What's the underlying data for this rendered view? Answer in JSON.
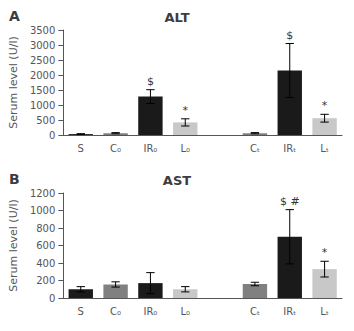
{
  "chart_data": [
    {
      "type": "bar",
      "panel_label": "A",
      "title": "ALT",
      "ylabel": "Serum level (U/l)",
      "categories": [
        "S",
        "C₀",
        "IR₀",
        "L₀",
        null,
        "Cₜ",
        "IRₜ",
        "Lₜ"
      ],
      "values": [
        30,
        60,
        1280,
        420,
        null,
        60,
        2150,
        560
      ],
      "errors": [
        15,
        20,
        230,
        120,
        null,
        20,
        900,
        130
      ],
      "colors": [
        "#1a1a1a",
        "#808080",
        "#1a1a1a",
        "#c8c8c8",
        null,
        "#808080",
        "#1a1a1a",
        "#c8c8c8"
      ],
      "annotations": [
        {
          "bar_index": 2,
          "text": "$"
        },
        {
          "bar_index": 3,
          "text": "*"
        },
        {
          "bar_index": 6,
          "text": "$"
        },
        {
          "bar_index": 7,
          "text": "*"
        }
      ],
      "ylim": [
        0,
        3500
      ],
      "yticks": [
        0,
        500,
        1000,
        1500,
        2000,
        2500,
        3000,
        3500
      ],
      "grid": false
    },
    {
      "type": "bar",
      "panel_label": "B",
      "title": "AST",
      "ylabel": "Serum level (U/l)",
      "categories": [
        "S",
        "C₀",
        "IR₀",
        "L₀",
        null,
        "Cₜ",
        "IRₜ",
        "Lₜ"
      ],
      "values": [
        100,
        155,
        170,
        100,
        null,
        160,
        700,
        330
      ],
      "errors": [
        30,
        30,
        120,
        30,
        null,
        20,
        310,
        90
      ],
      "colors": [
        "#1a1a1a",
        "#808080",
        "#1a1a1a",
        "#c8c8c8",
        null,
        "#808080",
        "#1a1a1a",
        "#c8c8c8"
      ],
      "annotations": [
        {
          "bar_index": 6,
          "text": "$ #"
        },
        {
          "bar_index": 7,
          "text": "*"
        }
      ],
      "ylim": [
        0,
        1200
      ],
      "yticks": [
        0,
        200,
        400,
        600,
        800,
        1000,
        1200
      ],
      "grid": false
    }
  ]
}
